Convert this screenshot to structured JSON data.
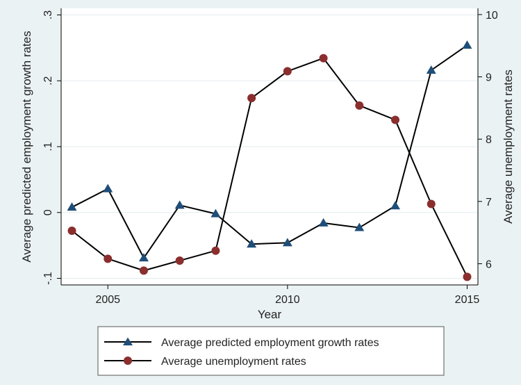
{
  "chart_data": {
    "type": "line",
    "xlabel": "Year",
    "ylabel_left": "Average predicted employment growth rates",
    "ylabel_right": "Average unemployment rates",
    "x": [
      2004,
      2005,
      2006,
      2007,
      2008,
      2009,
      2010,
      2011,
      2012,
      2013,
      2014,
      2015
    ],
    "xlim": [
      2003.7,
      2015.3
    ],
    "x_ticks": [
      2005,
      2010,
      2015
    ],
    "ylim_left": [
      -0.11,
      0.31
    ],
    "y_ticks_left": [
      -0.1,
      0,
      0.1,
      0.2,
      0.3
    ],
    "y_tick_labels_left": [
      "-.1",
      "0",
      ".1",
      ".2",
      ".3"
    ],
    "ylim_right": [
      5.66,
      10.1
    ],
    "y_ticks_right": [
      6,
      7,
      8,
      9,
      10
    ],
    "y_tick_labels_right": [
      "6",
      "7",
      "8",
      "9",
      "10"
    ],
    "grid": true,
    "legend_position": "bottom",
    "series": [
      {
        "name": "Average predicted employment growth rates",
        "axis": "left",
        "marker": "triangle",
        "color": "#1f4e79",
        "values": [
          0.008,
          0.036,
          -0.069,
          0.011,
          -0.002,
          -0.048,
          -0.046,
          -0.016,
          -0.023,
          0.01,
          0.216,
          0.254
        ]
      },
      {
        "name": "Average unemployment rates",
        "axis": "right",
        "marker": "circle",
        "color": "#8b2e2e",
        "values": [
          6.53,
          6.08,
          5.89,
          6.05,
          6.21,
          8.66,
          9.09,
          9.3,
          8.54,
          8.31,
          6.96,
          5.79
        ]
      }
    ]
  }
}
